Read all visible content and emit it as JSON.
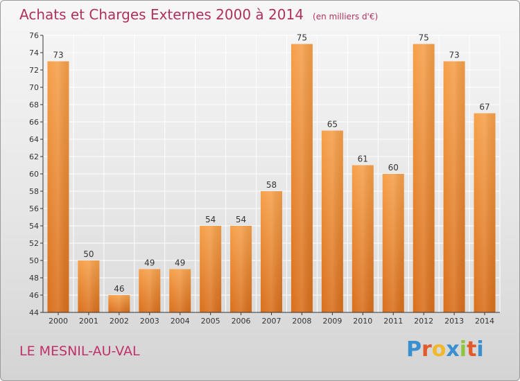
{
  "header": {
    "title": "Achats et Charges Externes 2000 à 2014",
    "unit": "(en milliers d'€)"
  },
  "footer": {
    "location": "LE MESNIL-AU-VAL",
    "brand": "Proxiti"
  },
  "colors": {
    "bar_top": "#f6a04a",
    "bar_bottom": "#d96f1c",
    "title": "#b0305c",
    "grid": "#ffffff",
    "axis": "#333333"
  },
  "chart_data": {
    "type": "bar",
    "categories": [
      "2000",
      "2001",
      "2002",
      "2003",
      "2004",
      "2005",
      "2006",
      "2007",
      "2008",
      "2009",
      "2010",
      "2011",
      "2012",
      "2013",
      "2014"
    ],
    "values": [
      73,
      50,
      46,
      49,
      49,
      54,
      54,
      58,
      75,
      65,
      61,
      60,
      75,
      73,
      67
    ],
    "ylim": [
      44,
      76
    ],
    "yticks": [
      44,
      46,
      48,
      50,
      52,
      54,
      56,
      58,
      60,
      62,
      64,
      66,
      68,
      70,
      72,
      74,
      76
    ],
    "grid": true,
    "title": "Achats et Charges Externes 2000 à 2014",
    "xlabel": "",
    "ylabel": ""
  }
}
